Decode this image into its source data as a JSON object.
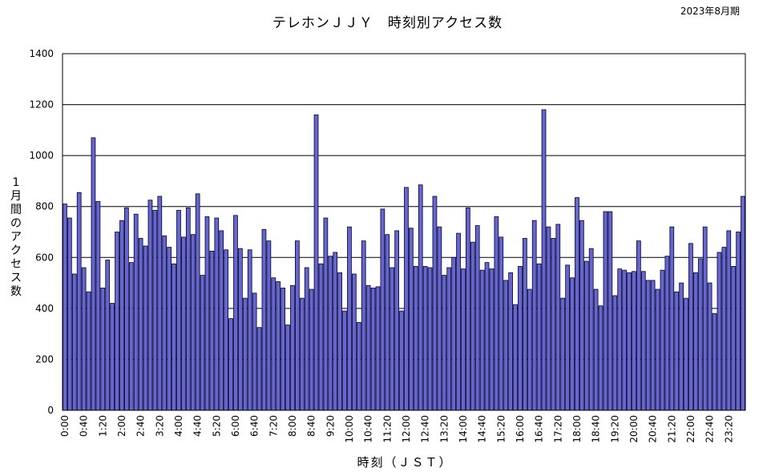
{
  "chart_data": {
    "type": "bar",
    "title": "テレホンＪＪＹ　時刻別アクセス数",
    "period": "2023年8月期",
    "ylabel": "1月間のアクセス数",
    "xlabel": "時刻（ＪＳＴ）",
    "ylim": [
      0,
      1400
    ],
    "yticks": [
      0,
      200,
      400,
      600,
      800,
      1000,
      1200,
      1400
    ],
    "grid": true,
    "bar_color": "#6666cc",
    "bar_edge_color": "#000033",
    "tick_labels": [
      "0:00",
      "0:40",
      "1:20",
      "2:00",
      "2:40",
      "3:20",
      "4:00",
      "4:40",
      "5:20",
      "6:00",
      "6:40",
      "7:20",
      "8:00",
      "8:40",
      "9:20",
      "10:00",
      "10:40",
      "11:20",
      "12:00",
      "12:40",
      "13:20",
      "14:00",
      "14:40",
      "15:20",
      "16:00",
      "16:40",
      "17:20",
      "18:00",
      "18:40",
      "19:20",
      "20:00",
      "20:40",
      "21:20",
      "22:00",
      "22:40",
      "23:20"
    ],
    "interval_minutes": 10,
    "values": [
      810,
      755,
      535,
      855,
      560,
      465,
      1070,
      820,
      480,
      590,
      420,
      700,
      745,
      795,
      580,
      770,
      675,
      645,
      825,
      785,
      840,
      685,
      640,
      575,
      785,
      680,
      795,
      690,
      850,
      530,
      760,
      625,
      755,
      705,
      630,
      360,
      765,
      635,
      440,
      630,
      460,
      325,
      710,
      665,
      520,
      505,
      480,
      335,
      490,
      665,
      440,
      560,
      475,
      1160,
      575,
      755,
      605,
      620,
      540,
      390,
      720,
      535,
      345,
      665,
      490,
      480,
      485,
      790,
      690,
      560,
      705,
      390,
      875,
      715,
      565,
      885,
      565,
      560,
      840,
      720,
      530,
      560,
      600,
      695,
      555,
      795,
      660,
      725,
      550,
      580,
      555,
      760,
      680,
      510,
      540,
      415,
      565,
      675,
      475,
      745,
      575,
      1180,
      720,
      675,
      730,
      440,
      570,
      520,
      835,
      745,
      585,
      635,
      475,
      410,
      780,
      780,
      450,
      555,
      550,
      540,
      545,
      665,
      545,
      510,
      510,
      475,
      550,
      605,
      720,
      465,
      500,
      440,
      655,
      540,
      595,
      720,
      500,
      380,
      620,
      640,
      705,
      565,
      700,
      840
    ]
  }
}
